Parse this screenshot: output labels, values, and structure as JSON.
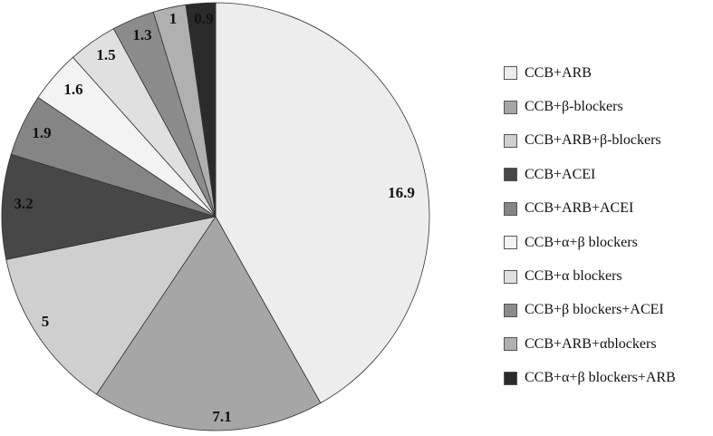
{
  "chart_data": {
    "type": "pie",
    "title": "",
    "slices": [
      {
        "label": "CCB+ARB",
        "value": 16.9,
        "color": "#ededed"
      },
      {
        "label": "CCB+β-blockers",
        "value": 7.1,
        "color": "#a6a6a6"
      },
      {
        "label": "CCB+ARB+β-blockers",
        "value": 5,
        "color": "#cfcfcf"
      },
      {
        "label": "CCB+ACEI",
        "value": 3.2,
        "color": "#474747"
      },
      {
        "label": "CCB+ARB+ACEI",
        "value": 1.9,
        "color": "#858585"
      },
      {
        "label": "CCB+α+β blockers",
        "value": 1.6,
        "color": "#f3f3f3"
      },
      {
        "label": "CCB+α blockers",
        "value": 1.5,
        "color": "#e0e0e0"
      },
      {
        "label": "CCB+β blockers+ACEI",
        "value": 1.3,
        "color": "#8c8c8c"
      },
      {
        "label": "CCB+ARB+αblockers",
        "value": 1,
        "color": "#b0b0b0"
      },
      {
        "label": "CCB+α+β blockers+ARB",
        "value": 0.9,
        "color": "#2b2b2b"
      }
    ],
    "data_labels": [
      "16.9",
      "7.1",
      "5",
      "3.2",
      "1.9",
      "1.6",
      "1.5",
      "1.3",
      "1",
      "0.9"
    ],
    "start": "12 o'clock",
    "direction": "clockwise",
    "legend": "right"
  }
}
